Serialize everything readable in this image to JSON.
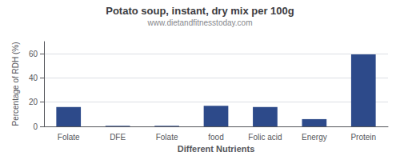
{
  "chart_data": {
    "type": "bar",
    "title": "Potato soup, instant, dry mix per 100g",
    "subtitle": "www.dietandfitnesstoday.com",
    "xlabel": "Different Nutrients",
    "ylabel": "Percentage of RDH (%)",
    "categories": [
      "Folate",
      "DFE",
      "Folate",
      "food",
      "Folic acid",
      "Energy",
      "Protein"
    ],
    "values": [
      16,
      0.5,
      0.5,
      17,
      16,
      6,
      59.5
    ],
    "color": "#2d4a8a",
    "ylim": [
      0,
      70
    ],
    "yticks": [
      0,
      20,
      40,
      60
    ],
    "grid": true
  }
}
